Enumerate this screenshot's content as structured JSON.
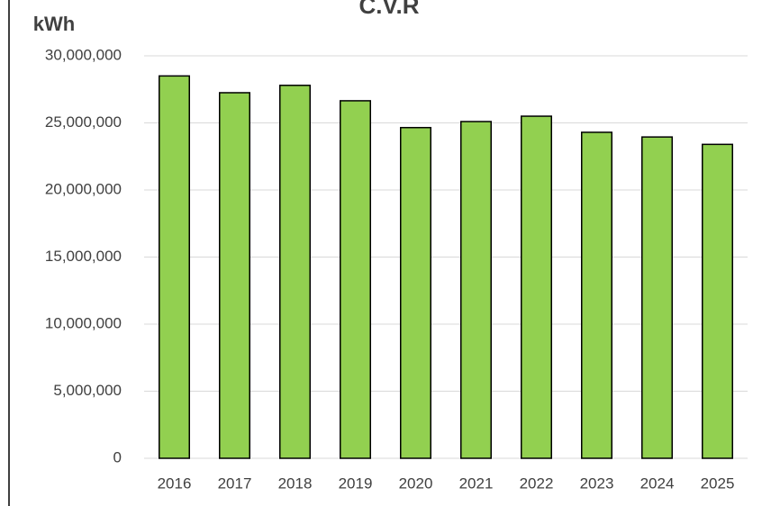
{
  "chart_data": {
    "type": "bar",
    "title": "C.V.R",
    "y_label": "kWh",
    "categories": [
      "2016",
      "2017",
      "2018",
      "2019",
      "2020",
      "2021",
      "2022",
      "2023",
      "2024",
      "2025"
    ],
    "values": [
      28500000,
      27250000,
      27800000,
      26650000,
      24650000,
      25100000,
      25500000,
      24300000,
      23950000,
      23400000
    ],
    "color": "#92d050",
    "ylim": [
      0,
      30000000
    ],
    "yticks": [
      {
        "value": 0,
        "label": "0"
      },
      {
        "value": 5000000,
        "label": "5,000,000"
      },
      {
        "value": 10000000,
        "label": "10,000,000"
      },
      {
        "value": 15000000,
        "label": "15,000,000"
      },
      {
        "value": 20000000,
        "label": "20,000,000"
      },
      {
        "value": 25000000,
        "label": "25,000,000"
      },
      {
        "value": 30000000,
        "label": "30,000,000"
      }
    ],
    "grid": true
  }
}
